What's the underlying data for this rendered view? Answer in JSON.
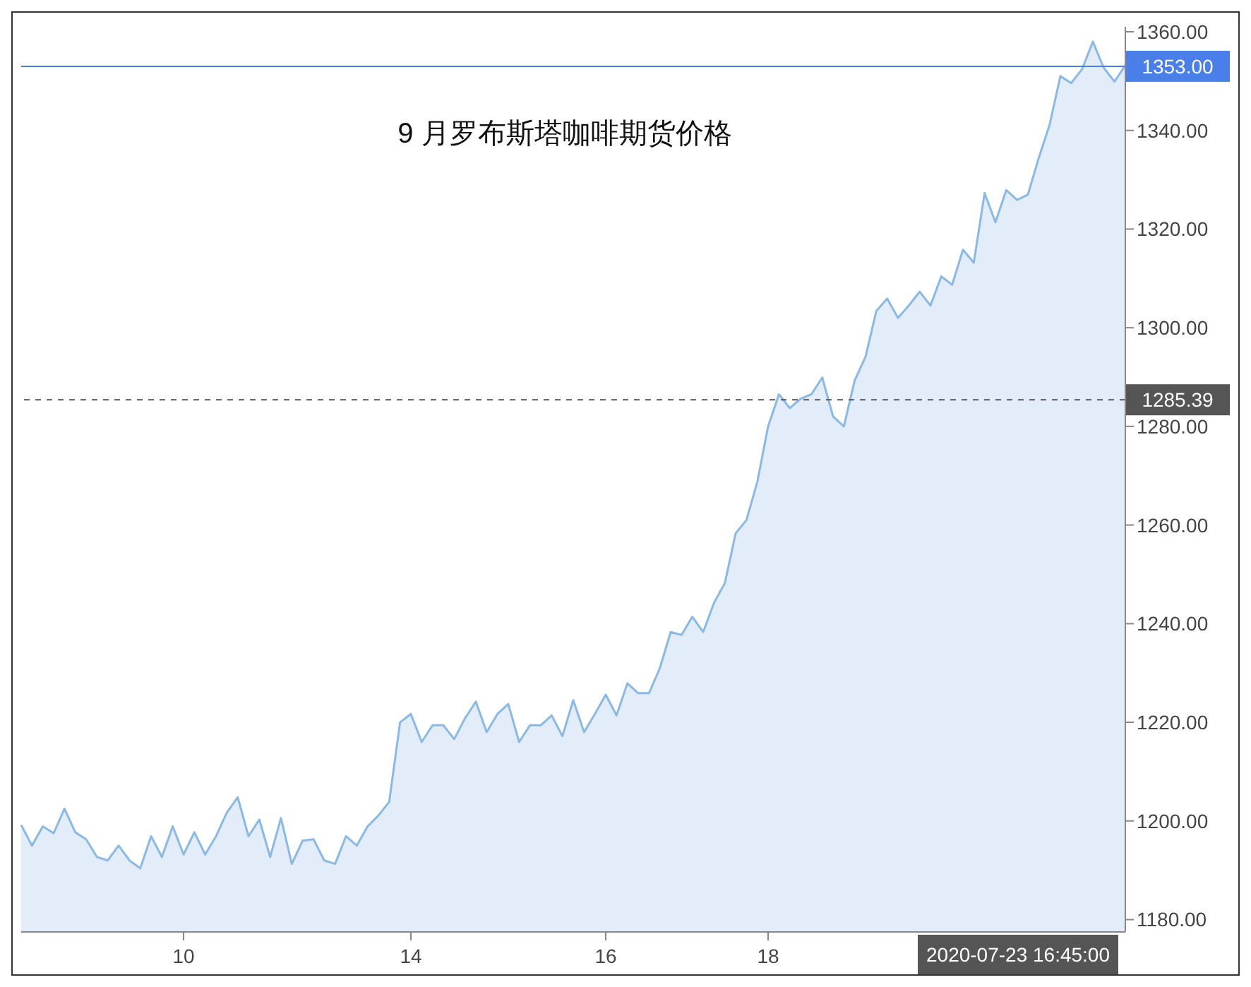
{
  "chart_data": {
    "type": "area",
    "title": "9 月罗布斯塔咖啡期货价格",
    "categories": [
      null,
      null,
      null,
      null,
      null,
      null,
      null,
      null,
      null,
      null,
      null,
      null,
      null,
      null,
      null,
      "10",
      null,
      null,
      null,
      null,
      null,
      null,
      null,
      null,
      null,
      null,
      null,
      null,
      null,
      null,
      null,
      null,
      null,
      null,
      null,
      null,
      "14",
      null,
      null,
      null,
      null,
      null,
      null,
      null,
      null,
      null,
      null,
      null,
      null,
      null,
      null,
      null,
      null,
      null,
      "16",
      null,
      null,
      null,
      null,
      null,
      null,
      null,
      null,
      null,
      null,
      null,
      null,
      null,
      null,
      "18",
      null,
      null,
      null,
      null,
      null,
      null,
      null,
      null,
      null,
      null,
      null,
      null,
      null,
      null,
      null,
      null,
      null,
      null,
      null,
      null,
      null,
      null,
      null,
      null,
      null,
      null,
      null,
      null,
      null,
      null,
      null,
      null,
      null
    ],
    "series": [
      {
        "color": "#8ab9e6",
        "values": [
          1199.2,
          1195,
          1198.9,
          1197.5,
          1202.5,
          1197.7,
          1196.3,
          1192.7,
          1192,
          1195,
          1192,
          1190.4,
          1196.9,
          1192.7,
          1198.9,
          1193.2,
          1197.7,
          1193.2,
          1196.9,
          1201.7,
          1204.8,
          1196.9,
          1200.3,
          1192.7,
          1200.6,
          1191.3,
          1196,
          1196.3,
          1192,
          1191.3,
          1196.9,
          1195,
          1198.9,
          1201.1,
          1203.9,
          1220,
          1221.7,
          1216,
          1219.4,
          1219.4,
          1216.6,
          1220.8,
          1224.2,
          1218,
          1221.7,
          1223.7,
          1216,
          1219.4,
          1219.4,
          1221.4,
          1217.2,
          1224.5,
          1218,
          1221.7,
          1225.6,
          1221.4,
          1227.9,
          1225.9,
          1225.9,
          1231,
          1238.3,
          1237.7,
          1241.4,
          1238.3,
          1244.2,
          1248.2,
          1258.3,
          1261,
          1268.7,
          1280,
          1286.5,
          1283.7,
          1285.6,
          1286.5,
          1289.9,
          1282,
          1280,
          1289.3,
          1294.1,
          1303.4,
          1305.9,
          1302,
          1304.5,
          1307.3,
          1304.5,
          1310.4,
          1308.7,
          1315.8,
          1313.2,
          1327.3,
          1321.4,
          1327.9,
          1325.9,
          1327,
          1334.4,
          1341.1,
          1351,
          1349.6,
          1352.4,
          1358,
          1352.7,
          1349.9,
          1353.2
        ]
      }
    ],
    "ylim": [
      1177.5,
      1361
    ],
    "yticks": [
      {
        "value": 1180,
        "label": "1180.00"
      },
      {
        "value": 1200,
        "label": "1200.00"
      },
      {
        "value": 1220,
        "label": "1220.00"
      },
      {
        "value": 1240,
        "label": "1240.00"
      },
      {
        "value": 1260,
        "label": "1260.00"
      },
      {
        "value": 1280,
        "label": "1280.00"
      },
      {
        "value": 1300,
        "label": "1300.00"
      },
      {
        "value": 1320,
        "label": "1320.00"
      },
      {
        "value": 1340,
        "label": "1340.00"
      },
      {
        "value": 1360,
        "label": "1360.00"
      }
    ],
    "ref_lines": [
      {
        "axis": "y",
        "value": 1353,
        "label": "1353.00",
        "color": "#4a7ee8",
        "line_style": "solid"
      },
      {
        "axis": "y",
        "value": 1285.39,
        "label": "1285.39",
        "color": "#555555",
        "line_style": "dashed"
      }
    ],
    "annotations": [
      "2020-07-23 16:45:00"
    ],
    "grid": false,
    "legend": false
  }
}
